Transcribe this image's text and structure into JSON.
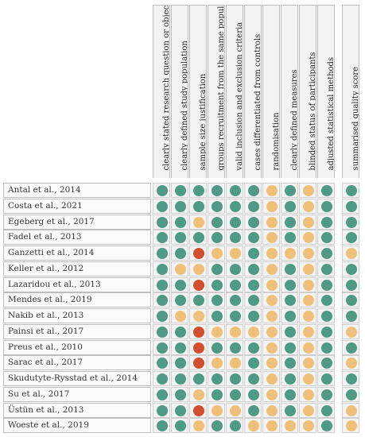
{
  "criteria": [
    "clearly stated research question or objective",
    "clearly defined study population",
    "sample size justification",
    "groups recruitment from the same population",
    "valid inclusion and exclusion criteria",
    "cases differentiated from controls",
    "randomisation",
    "clearly defined measures",
    "blinded status of participants",
    "adjusted statistical methods"
  ],
  "summary_label": "summarised quality score",
  "colors": {
    "green": "#4f9a84",
    "yellow": "#efc07a",
    "red": "#d24e2f"
  },
  "studies": [
    {
      "name": "Antal et al., 2014",
      "ratings": [
        "g",
        "g",
        "g",
        "g",
        "g",
        "g",
        "y",
        "g",
        "y",
        "g"
      ],
      "summary": "g"
    },
    {
      "name": "Costa et al., 2021",
      "ratings": [
        "g",
        "g",
        "g",
        "g",
        "g",
        "g",
        "y",
        "g",
        "y",
        "g"
      ],
      "summary": "g"
    },
    {
      "name": "Egeberg et al., 2017",
      "ratings": [
        "g",
        "g",
        "y",
        "g",
        "g",
        "g",
        "y",
        "g",
        "y",
        "g"
      ],
      "summary": "g"
    },
    {
      "name": "Fadel et al., 2013",
      "ratings": [
        "g",
        "g",
        "g",
        "g",
        "g",
        "g",
        "y",
        "g",
        "y",
        "g"
      ],
      "summary": "g"
    },
    {
      "name": "Ganzetti et al., 2014",
      "ratings": [
        "g",
        "g",
        "r",
        "y",
        "y",
        "g",
        "y",
        "y",
        "y",
        "g"
      ],
      "summary": "y"
    },
    {
      "name": "Keller et al., 2012",
      "ratings": [
        "g",
        "y",
        "y",
        "g",
        "g",
        "g",
        "y",
        "g",
        "y",
        "g"
      ],
      "summary": "g"
    },
    {
      "name": "Lazaridou et al., 2013",
      "ratings": [
        "g",
        "g",
        "r",
        "g",
        "g",
        "g",
        "y",
        "g",
        "y",
        "g"
      ],
      "summary": "g"
    },
    {
      "name": "Mendes et al., 2019",
      "ratings": [
        "g",
        "g",
        "g",
        "g",
        "g",
        "g",
        "y",
        "g",
        "y",
        "g"
      ],
      "summary": "g"
    },
    {
      "name": "Nakib et al., 2013",
      "ratings": [
        "g",
        "y",
        "y",
        "g",
        "g",
        "g",
        "y",
        "g",
        "y",
        "g"
      ],
      "summary": "g"
    },
    {
      "name": "Painsi et al., 2017",
      "ratings": [
        "g",
        "g",
        "r",
        "y",
        "y",
        "y",
        "y",
        "g",
        "y",
        "g"
      ],
      "summary": "y"
    },
    {
      "name": "Preus et al., 2010",
      "ratings": [
        "g",
        "g",
        "r",
        "g",
        "g",
        "g",
        "y",
        "g",
        "y",
        "g"
      ],
      "summary": "g"
    },
    {
      "name": "Sarac et al., 2017",
      "ratings": [
        "g",
        "g",
        "r",
        "y",
        "y",
        "g",
        "y",
        "g",
        "y",
        "g"
      ],
      "summary": "y"
    },
    {
      "name": "Skudutyte-Rysstad et al., 2014",
      "ratings": [
        "g",
        "g",
        "g",
        "g",
        "g",
        "g",
        "y",
        "g",
        "y",
        "g"
      ],
      "summary": "g"
    },
    {
      "name": "Su et al., 2017",
      "ratings": [
        "g",
        "g",
        "y",
        "g",
        "g",
        "g",
        "y",
        "g",
        "y",
        "g"
      ],
      "summary": "g"
    },
    {
      "name": "Üstün et al., 2013",
      "ratings": [
        "g",
        "g",
        "r",
        "y",
        "y",
        "g",
        "y",
        "g",
        "y",
        "g"
      ],
      "summary": "y"
    },
    {
      "name": "Woeste et al., 2019",
      "ratings": [
        "g",
        "g",
        "y",
        "g",
        "g",
        "y",
        "y",
        "y",
        "y",
        "g"
      ],
      "summary": "y"
    }
  ]
}
